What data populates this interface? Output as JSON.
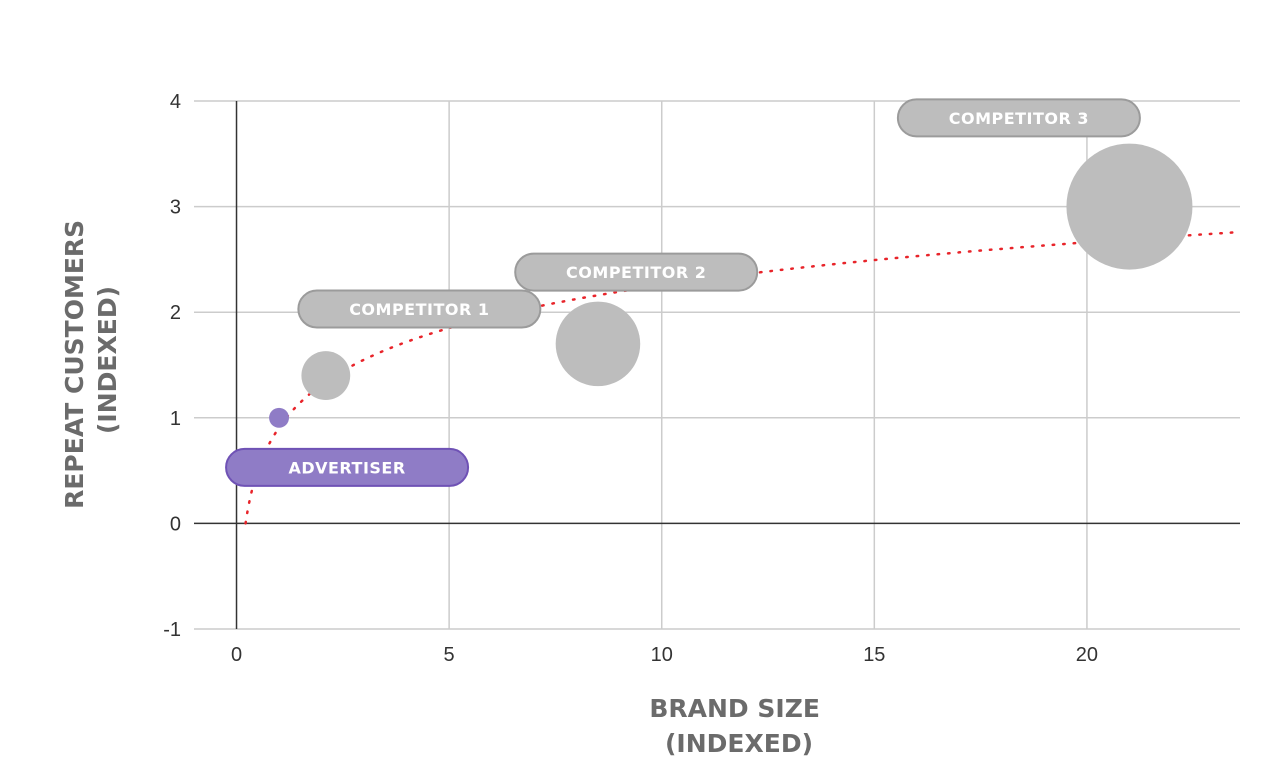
{
  "chart_data": {
    "type": "scatter",
    "variant": "bubble",
    "xlabel": [
      "BRAND SIZE",
      "(INDEXED)"
    ],
    "ylabel": [
      "REPEAT CUSTOMERS",
      "(INDEXED)"
    ],
    "xlim": [
      -1,
      23.6
    ],
    "ylim": [
      -1,
      4
    ],
    "xticks": [
      0,
      5,
      10,
      15,
      20
    ],
    "yticks": [
      -1,
      0,
      1,
      2,
      3,
      4
    ],
    "grid": true,
    "trendline": {
      "type": "logarithmic",
      "style": "dotted",
      "color": "#e8242a"
    },
    "points": [
      {
        "label": "ADVERTISER",
        "x": 1.0,
        "y": 1.0,
        "bubble_size": 1,
        "color": "#8f7cc6",
        "label_x": 2.6,
        "label_y": 0.53
      },
      {
        "label": "COMPETITOR 1",
        "x": 2.1,
        "y": 1.4,
        "bubble_size": 6,
        "color": "#bdbdbd",
        "label_x": 4.3,
        "label_y": 2.03
      },
      {
        "label": "COMPETITOR 2",
        "x": 8.5,
        "y": 1.7,
        "bubble_size": 18,
        "color": "#bdbdbd",
        "label_x": 9.4,
        "label_y": 2.38
      },
      {
        "label": "COMPETITOR 3",
        "x": 21.0,
        "y": 3.0,
        "bubble_size": 40,
        "color": "#bdbdbd",
        "label_x": 18.4,
        "label_y": 3.84
      }
    ]
  }
}
